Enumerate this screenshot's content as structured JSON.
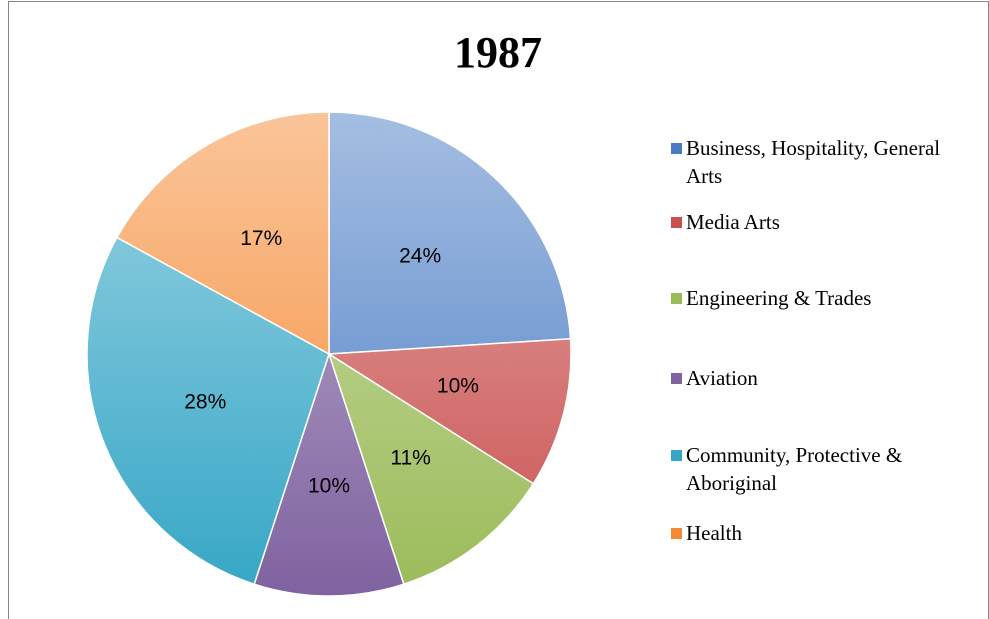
{
  "chart_data": {
    "type": "pie",
    "title": "1987",
    "categories": [
      "Business, Hospitality, General Arts",
      "Media Arts",
      "Engineering & Trades",
      "Aviation",
      "Community, Protective & Aboriginal",
      "Health"
    ],
    "values": [
      24,
      10,
      11,
      10,
      28,
      17
    ],
    "value_labels": [
      "24%",
      "10%",
      "11%",
      "10%",
      "28%",
      "17%"
    ],
    "colors": [
      "#4a7cc4",
      "#c9504f",
      "#9bbb59",
      "#7f62a0",
      "#35a6c6",
      "#f58a35"
    ],
    "legend": "right"
  }
}
